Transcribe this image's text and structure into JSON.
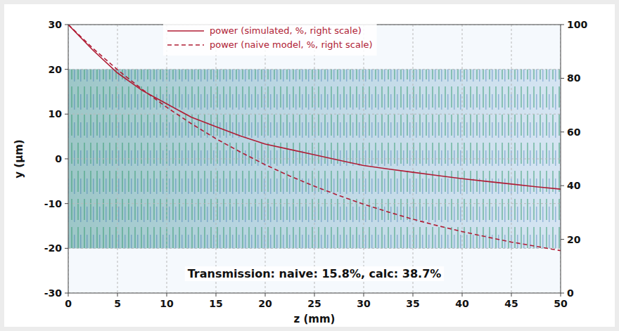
{
  "chart_data": {
    "type": "line",
    "x": [
      0,
      2.5,
      5,
      7.5,
      10,
      12.5,
      15,
      17.5,
      20,
      22.5,
      25,
      27.5,
      30,
      32.5,
      35,
      37.5,
      40,
      42.5,
      45,
      47.5,
      50
    ],
    "xlim": [
      0,
      50
    ],
    "xticks": [
      0,
      5,
      10,
      15,
      20,
      25,
      30,
      35,
      40,
      45,
      50
    ],
    "ylim": [
      -30,
      30
    ],
    "yticks": [
      -30,
      -20,
      -10,
      0,
      10,
      20,
      30
    ],
    "y2lim": [
      0,
      100
    ],
    "y2ticks": [
      0,
      20,
      40,
      60,
      80,
      100
    ],
    "x_label": "z (mm)",
    "y_label": "y (µm)",
    "grid": true,
    "legend": "top",
    "annotation": "Transmission: naive: 15.8%, calc: 38.7%",
    "field_band": [
      -20,
      20
    ],
    "series": [
      {
        "name": "power (simulated, %, right scale)",
        "color": "#b01c34",
        "line_style": "solid",
        "axis": "y2",
        "values": [
          100,
          90.5,
          82,
          75.5,
          70.5,
          65.5,
          62,
          58.5,
          55.5,
          53.5,
          51.5,
          49.5,
          47.5,
          46.2,
          45,
          43.8,
          42.6,
          41.6,
          40.6,
          39.6,
          38.7
        ]
      },
      {
        "name": "power (naive model, %, right scale)",
        "color": "#b01c34",
        "line_style": "dashed",
        "axis": "y2",
        "values": [
          100,
          91.2,
          83.2,
          75.9,
          69.2,
          63.1,
          57.5,
          52.5,
          47.8,
          43.6,
          39.8,
          36.3,
          33.1,
          30.2,
          27.5,
          25.1,
          22.9,
          20.9,
          19.0,
          17.4,
          15.8
        ]
      }
    ]
  }
}
